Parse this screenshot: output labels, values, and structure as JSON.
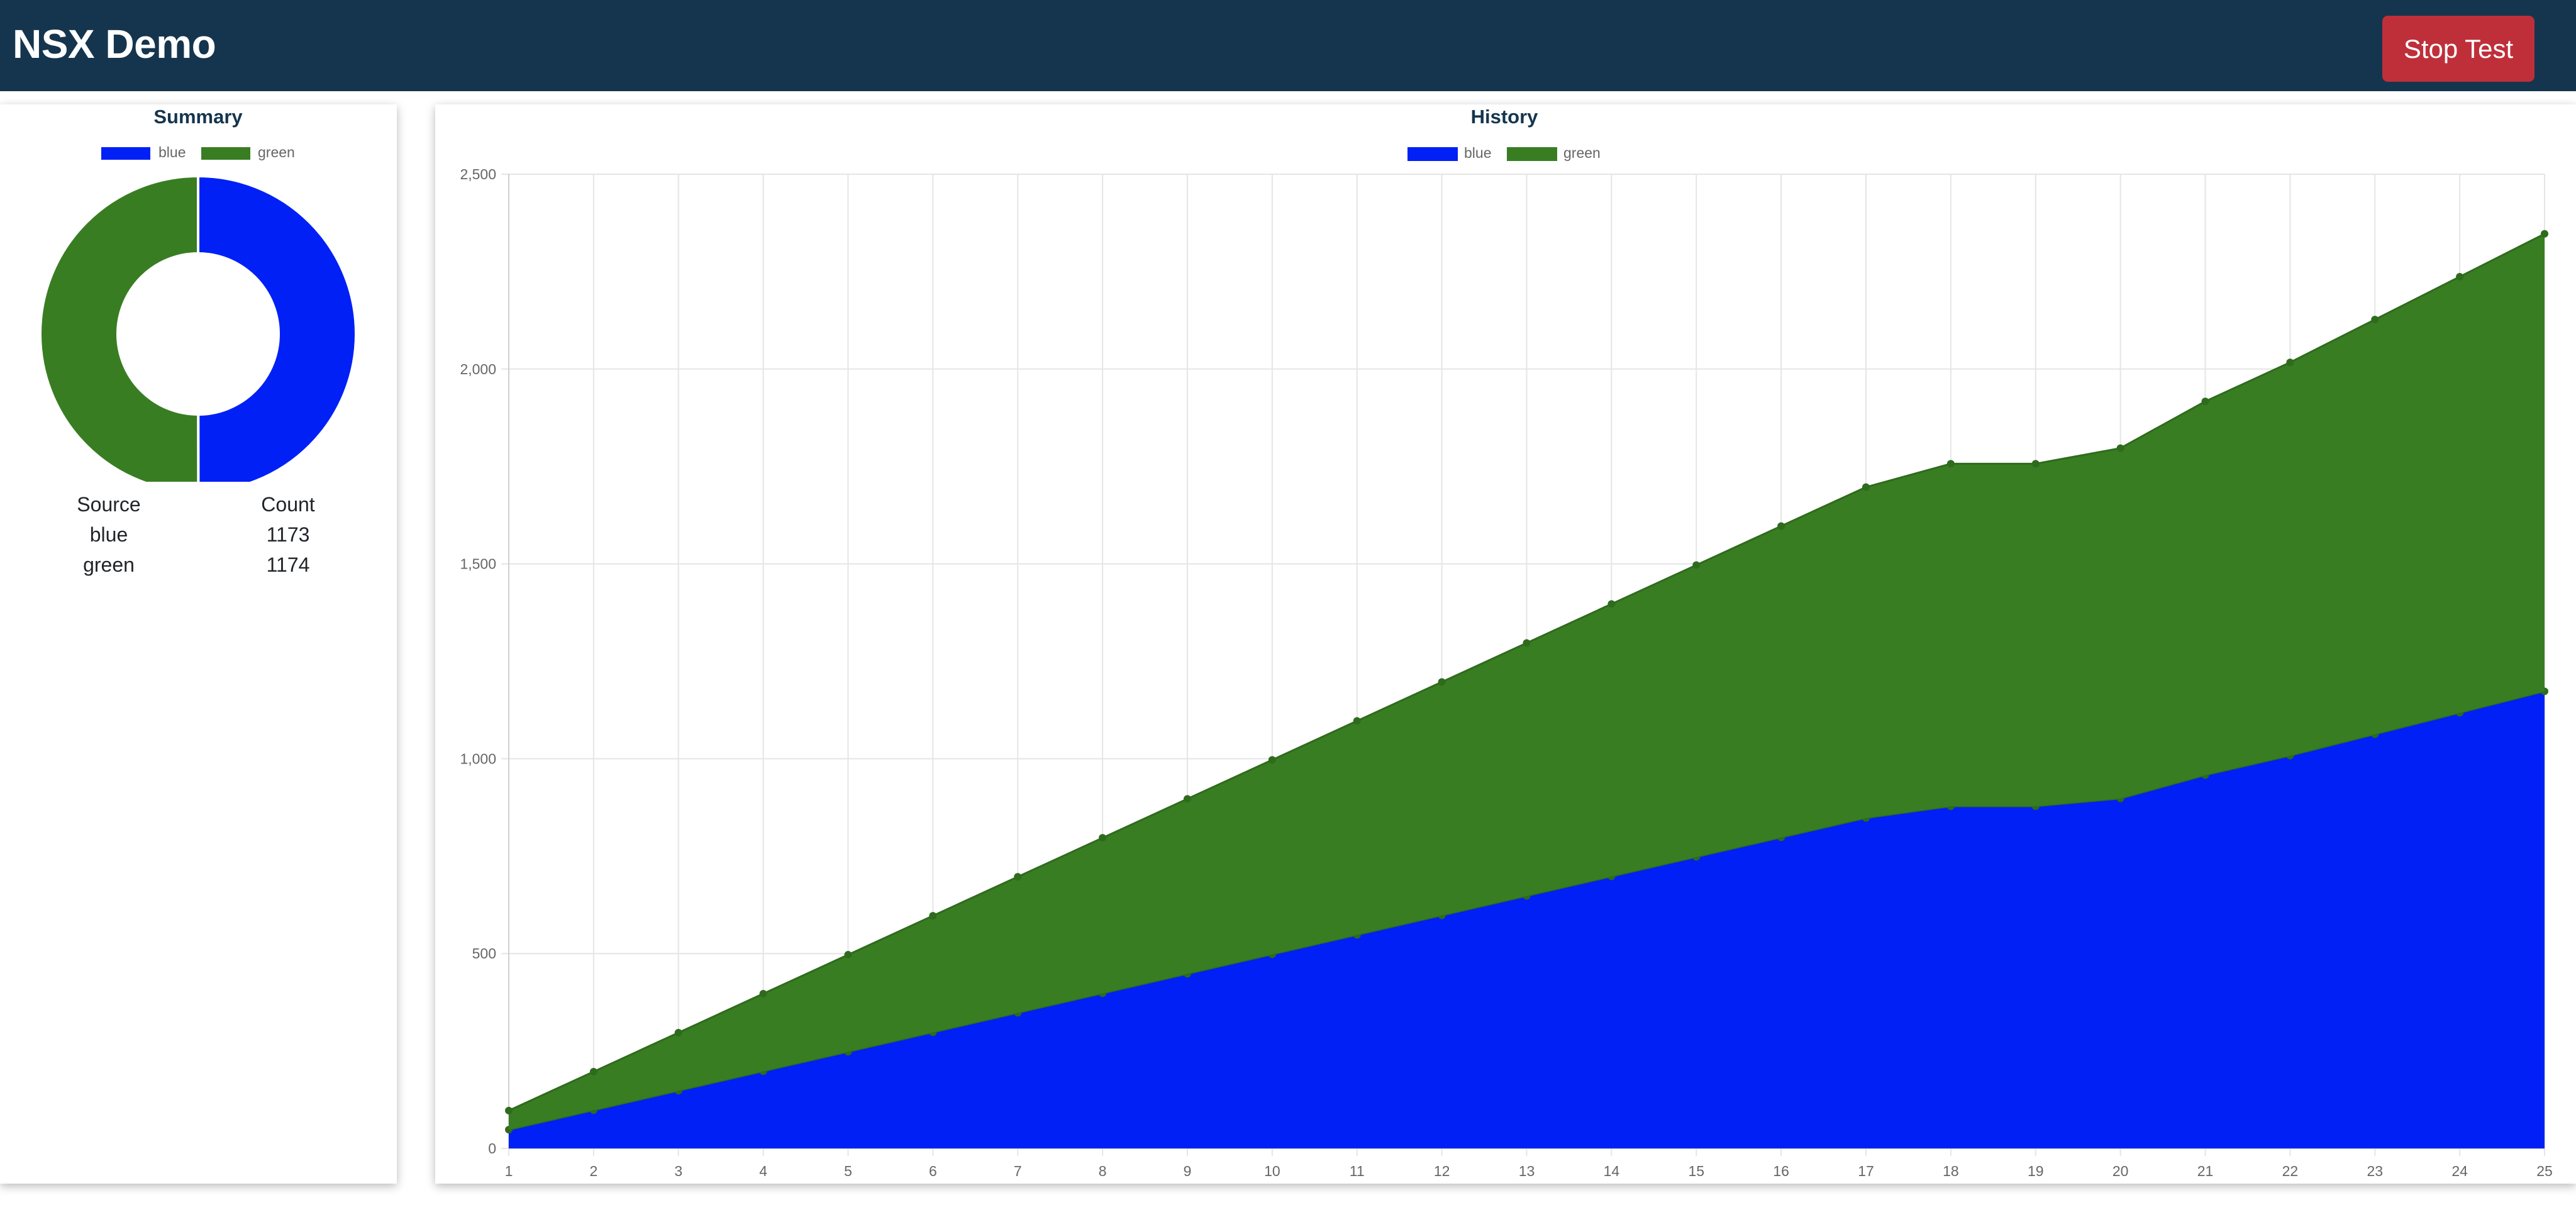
{
  "header": {
    "title": "NSX Demo",
    "stop_button_label": "Stop Test",
    "background_color": "#15354e",
    "stop_button_color": "#bf2f3a"
  },
  "summary": {
    "title": "Summary",
    "legend": [
      "blue",
      "green"
    ],
    "table": {
      "headers": [
        "Source",
        "Count"
      ],
      "rows": [
        {
          "source": "blue",
          "count": "1173"
        },
        {
          "source": "green",
          "count": "1174"
        }
      ]
    }
  },
  "history": {
    "title": "History",
    "legend": [
      "blue",
      "green"
    ]
  },
  "colors": {
    "blue": "#0020f5",
    "green": "#387d22",
    "title_text": "#15354e",
    "tick_text": "#666666",
    "grid": "#e5e5e5"
  },
  "chart_data": [
    {
      "type": "pie",
      "title": "Summary",
      "labels": [
        "blue",
        "green"
      ],
      "values": [
        1173,
        1174
      ],
      "legend_position": "top"
    },
    {
      "type": "area",
      "title": "History",
      "stacked": true,
      "x": [
        1,
        2,
        3,
        4,
        5,
        6,
        7,
        8,
        9,
        10,
        11,
        12,
        13,
        14,
        15,
        16,
        17,
        18,
        19,
        20,
        21,
        22,
        23,
        24,
        25
      ],
      "series": [
        {
          "name": "blue",
          "values": [
            48,
            98,
            148,
            198,
            248,
            298,
            348,
            398,
            448,
            498,
            548,
            598,
            648,
            698,
            748,
            798,
            848,
            878,
            878,
            898,
            958,
            1008,
            1063,
            1118,
            1173
          ]
        },
        {
          "name": "green",
          "values": [
            49,
            99,
            149,
            199,
            249,
            299,
            349,
            399,
            449,
            499,
            549,
            599,
            649,
            699,
            749,
            799,
            849,
            879,
            879,
            899,
            959,
            1009,
            1064,
            1119,
            1174
          ]
        }
      ],
      "ylim": [
        0,
        2500
      ],
      "yticks": [
        0,
        500,
        1000,
        1500,
        2000,
        2500
      ],
      "ytick_labels": [
        "0",
        "500",
        "1,000",
        "1,500",
        "2,000",
        "2,500"
      ],
      "grid": true,
      "legend_position": "top"
    }
  ]
}
